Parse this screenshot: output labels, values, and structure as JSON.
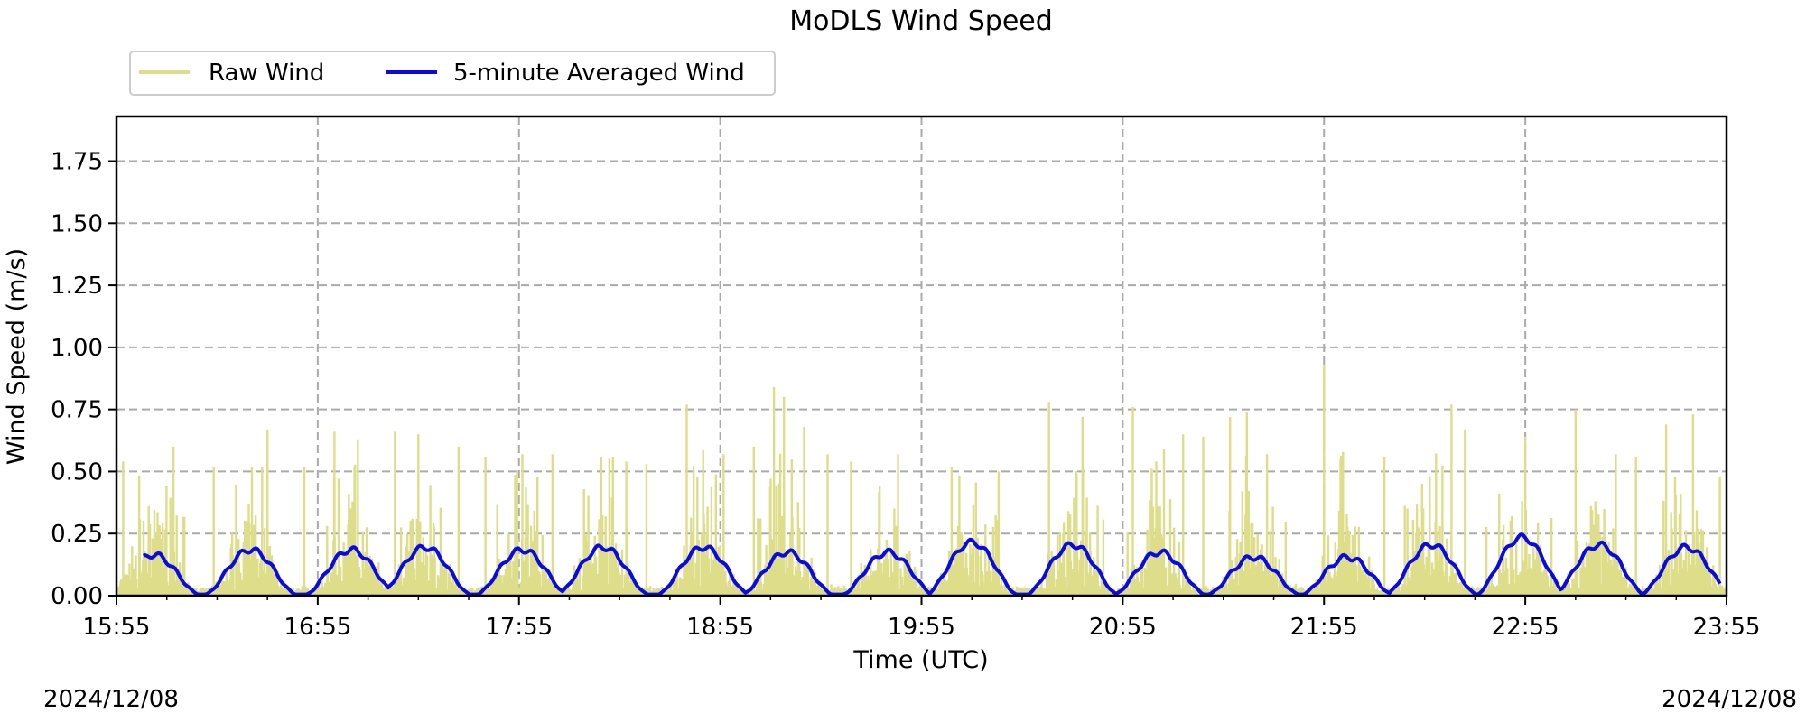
{
  "chart_data": {
    "type": "line",
    "title": "MoDLS Wind Speed",
    "xlabel": "Time (UTC)",
    "ylabel": "Wind Speed (m/s)",
    "x_ticks": [
      "15:55",
      "16:55",
      "17:55",
      "18:55",
      "19:55",
      "20:55",
      "21:55",
      "22:55",
      "23:55"
    ],
    "y_ticks": [
      "0.00",
      "0.25",
      "0.50",
      "0.75",
      "1.00",
      "1.25",
      "1.50",
      "1.75"
    ],
    "xlim": [
      "15:55",
      "23:55"
    ],
    "ylim": [
      0,
      1.93
    ],
    "grid": true,
    "legend": "top-left, outside plot",
    "date_start": "2024/12/08",
    "date_end": "2024/12/08",
    "series": [
      {
        "name": "Raw Wind",
        "color": "#dede8a",
        "peak_values": [
          {
            "t": "15:57",
            "v": 0.54
          },
          {
            "t": "16:12",
            "v": 0.6
          },
          {
            "t": "16:24",
            "v": 0.52
          },
          {
            "t": "16:40",
            "v": 0.67
          },
          {
            "t": "16:51",
            "v": 0.52
          },
          {
            "t": "17:00",
            "v": 0.66
          },
          {
            "t": "17:07",
            "v": 0.63
          },
          {
            "t": "17:18",
            "v": 0.66
          },
          {
            "t": "17:25",
            "v": 0.65
          },
          {
            "t": "17:37",
            "v": 0.6
          },
          {
            "t": "17:45",
            "v": 0.56
          },
          {
            "t": "17:56",
            "v": 0.57
          },
          {
            "t": "18:05",
            "v": 0.57
          },
          {
            "t": "18:23",
            "v": 0.56
          },
          {
            "t": "18:27",
            "v": 0.54
          },
          {
            "t": "18:33",
            "v": 0.53
          },
          {
            "t": "18:45",
            "v": 0.77
          },
          {
            "t": "18:56",
            "v": 0.57
          },
          {
            "t": "19:05",
            "v": 0.6
          },
          {
            "t": "19:11",
            "v": 0.84
          },
          {
            "t": "19:14",
            "v": 0.8
          },
          {
            "t": "19:20",
            "v": 0.68
          },
          {
            "t": "19:27",
            "v": 0.57
          },
          {
            "t": "19:34",
            "v": 0.54
          },
          {
            "t": "19:48",
            "v": 0.57
          },
          {
            "t": "20:04",
            "v": 0.52
          },
          {
            "t": "20:18",
            "v": 0.5
          },
          {
            "t": "20:33",
            "v": 0.78
          },
          {
            "t": "20:43",
            "v": 0.72
          },
          {
            "t": "20:58",
            "v": 0.76
          },
          {
            "t": "21:05",
            "v": 0.54
          },
          {
            "t": "21:13",
            "v": 0.65
          },
          {
            "t": "21:19",
            "v": 0.64
          },
          {
            "t": "21:27",
            "v": 0.72
          },
          {
            "t": "21:32",
            "v": 0.74
          },
          {
            "t": "21:38",
            "v": 0.57
          },
          {
            "t": "21:55",
            "v": 0.93
          },
          {
            "t": "22:13",
            "v": 0.56
          },
          {
            "t": "22:33",
            "v": 0.77
          },
          {
            "t": "22:37",
            "v": 0.67
          },
          {
            "t": "22:55",
            "v": 0.64
          },
          {
            "t": "23:10",
            "v": 0.75
          },
          {
            "t": "23:22",
            "v": 0.57
          },
          {
            "t": "23:28",
            "v": 0.56
          },
          {
            "t": "23:37",
            "v": 0.69
          },
          {
            "t": "23:45",
            "v": 0.73
          },
          {
            "t": "23:53",
            "v": 0.48
          }
        ]
      },
      {
        "name": "5-minute Averaged Wind",
        "color": "#0a0ae6",
        "cycle_peak_values": [
          {
            "t": "16:06",
            "v": 0.16
          },
          {
            "t": "16:35",
            "v": 0.18
          },
          {
            "t": "17:05",
            "v": 0.18
          },
          {
            "t": "17:27",
            "v": 0.19
          },
          {
            "t": "17:56",
            "v": 0.18
          },
          {
            "t": "18:20",
            "v": 0.19
          },
          {
            "t": "18:50",
            "v": 0.19
          },
          {
            "t": "19:15",
            "v": 0.17
          },
          {
            "t": "19:45",
            "v": 0.17
          },
          {
            "t": "20:10",
            "v": 0.21
          },
          {
            "t": "20:40",
            "v": 0.2
          },
          {
            "t": "21:06",
            "v": 0.17
          },
          {
            "t": "21:34",
            "v": 0.15
          },
          {
            "t": "22:02",
            "v": 0.15
          },
          {
            "t": "22:27",
            "v": 0.2
          },
          {
            "t": "22:54",
            "v": 0.23
          },
          {
            "t": "23:17",
            "v": 0.2
          },
          {
            "t": "23:43",
            "v": 0.19
          }
        ]
      }
    ]
  }
}
